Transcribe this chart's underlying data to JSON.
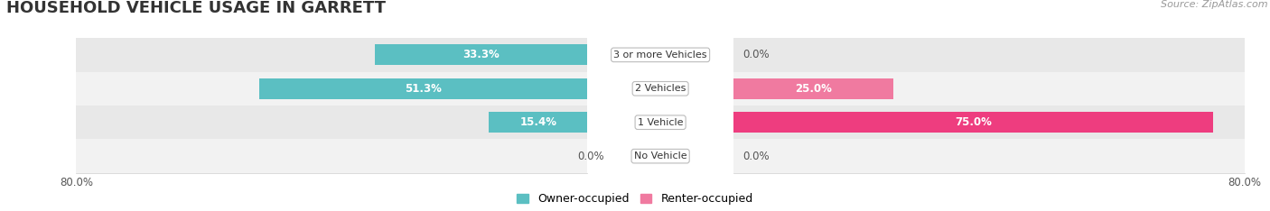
{
  "title": "HOUSEHOLD VEHICLE USAGE IN GARRETT",
  "source": "Source: ZipAtlas.com",
  "categories": [
    "No Vehicle",
    "1 Vehicle",
    "2 Vehicles",
    "3 or more Vehicles"
  ],
  "owner_values": [
    0.0,
    15.4,
    51.3,
    33.3
  ],
  "renter_values": [
    0.0,
    75.0,
    25.0,
    0.0
  ],
  "owner_color": "#5bbfc2",
  "renter_color": "#f07aa0",
  "renter_color_bright": "#ee3d7f",
  "row_colors": [
    "#f2f2f2",
    "#e8e8e8"
  ],
  "xlim_left": 80,
  "xlim_right": 80,
  "legend_owner": "Owner-occupied",
  "legend_renter": "Renter-occupied",
  "title_fontsize": 13,
  "bar_height": 0.62,
  "figwidth": 14.06,
  "figheight": 2.34
}
